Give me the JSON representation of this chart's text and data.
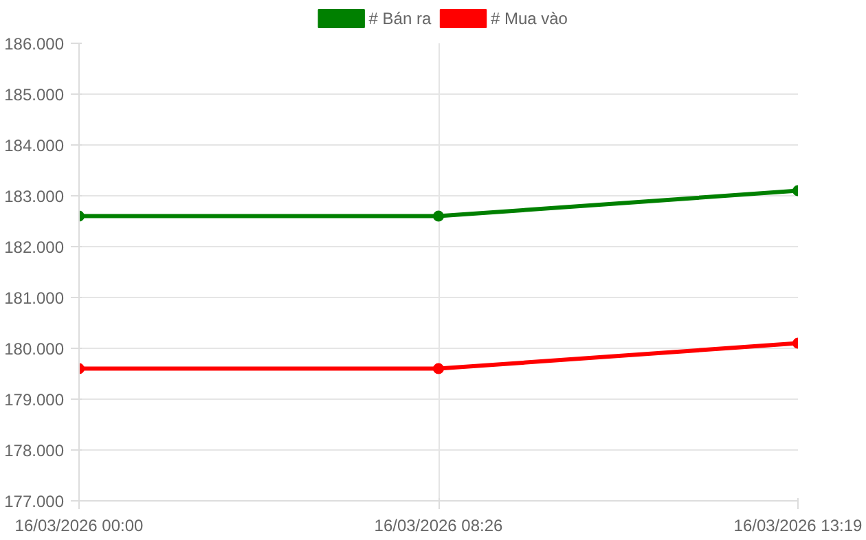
{
  "chart_data": {
    "type": "line",
    "categories": [
      "16/03/2026 00:00",
      "16/03/2026 08:26",
      "16/03/2026 13:19"
    ],
    "series": [
      {
        "name": "# Bán ra",
        "color": "#008000",
        "values": [
          182600,
          182600,
          183100
        ]
      },
      {
        "name": "# Mua vào",
        "color": "#ff0000",
        "values": [
          179600,
          179600,
          180100
        ]
      }
    ],
    "ylim": [
      177000,
      186000
    ],
    "yticks": [
      {
        "value": 177000,
        "label": "177.000"
      },
      {
        "value": 178000,
        "label": "178.000"
      },
      {
        "value": 179000,
        "label": "179.000"
      },
      {
        "value": 180000,
        "label": "180.000"
      },
      {
        "value": 181000,
        "label": "181.000"
      },
      {
        "value": 182000,
        "label": "182.000"
      },
      {
        "value": 183000,
        "label": "183.000"
      },
      {
        "value": 184000,
        "label": "184.000"
      },
      {
        "value": 185000,
        "label": "185.000"
      },
      {
        "value": 186000,
        "label": "186.000"
      }
    ],
    "grid": true,
    "legend": "top",
    "marker": "circle",
    "line_style": "solid"
  }
}
